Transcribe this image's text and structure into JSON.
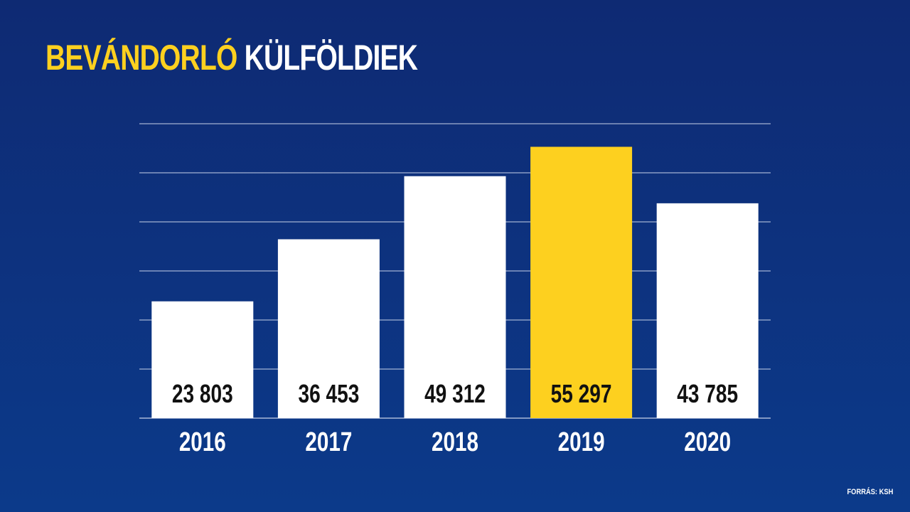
{
  "title": {
    "accent": "BEVÁNDORLÓ",
    "main": "KÜLFÖLDIEK"
  },
  "source": "FORRÁS: KSH",
  "colors": {
    "background_top": "#0e2a73",
    "background_bottom": "#0c3a8a",
    "bar_default": "#ffffff",
    "bar_highlight": "#fdd01f",
    "grid": "#c8d2e8",
    "title_accent": "#fdd01f"
  },
  "chart_data": {
    "type": "bar",
    "categories": [
      "2016",
      "2017",
      "2018",
      "2019",
      "2020"
    ],
    "values": [
      23803,
      36453,
      49312,
      55297,
      43785
    ],
    "value_labels": [
      "23 803",
      "36 453",
      "49 312",
      "55 297",
      "43 785"
    ],
    "highlight_category": "2019",
    "ylim": [
      0,
      60000
    ],
    "grid": true,
    "yticks_shown": false
  }
}
